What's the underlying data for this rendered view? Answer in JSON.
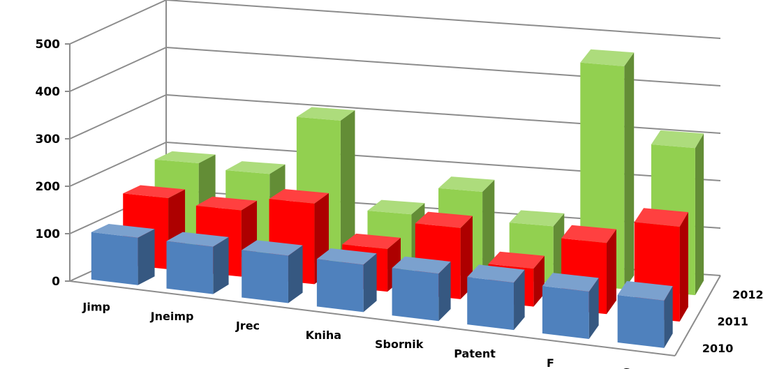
{
  "chart_data": {
    "type": "bar",
    "variant": "3d-clustered-depth",
    "title": "",
    "xlabel": "",
    "ylabel": "",
    "ylim": [
      0,
      500
    ],
    "y_ticks": [
      "0",
      "100",
      "200",
      "300",
      "400",
      "500"
    ],
    "grid": true,
    "categories": [
      "Jimp",
      "Jneimp",
      "Jrec",
      "Kniha",
      "Sbornik",
      "Patent",
      "F",
      "G"
    ],
    "series": [
      {
        "name": "2010",
        "color": "#4F81BD",
        "values": [
          100,
          100,
          100,
          100,
          100,
          100,
          100,
          100
        ]
      },
      {
        "name": "2011",
        "color": "#FF0000",
        "values": [
          150,
          140,
          170,
          90,
          150,
          80,
          150,
          200
        ]
      },
      {
        "name": "2012",
        "color": "#92D050",
        "values": [
          190,
          180,
          305,
          120,
          180,
          120,
          470,
          310
        ]
      }
    ]
  }
}
